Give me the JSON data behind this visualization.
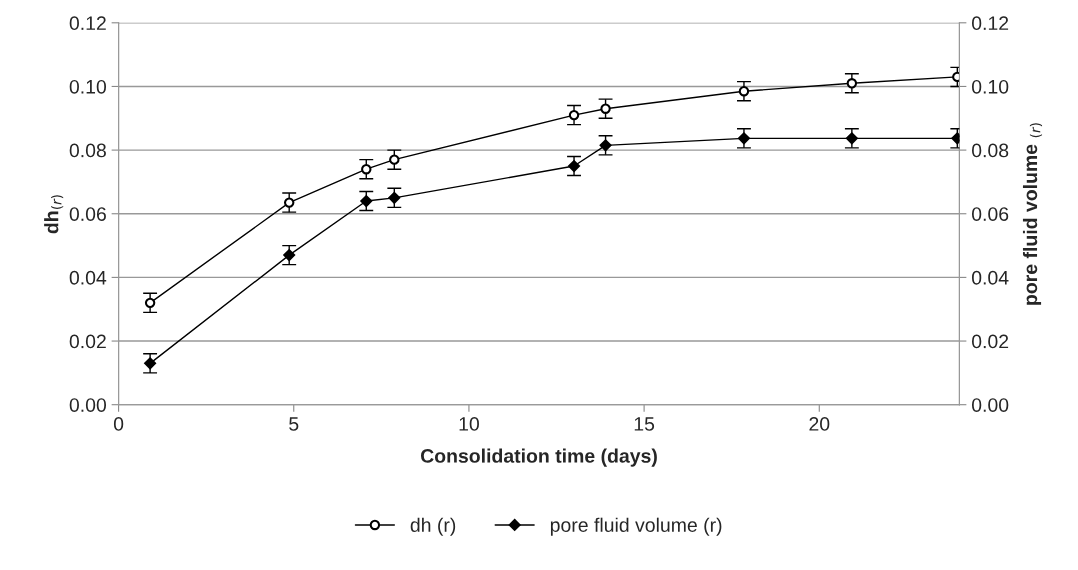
{
  "chart_data": {
    "type": "line",
    "xlabel": "Consolidation time (days)",
    "ylabel": "dh$_{(r)}$",
    "y2label": "pore fluid volume $_{(r)}$",
    "x": [
      0.9,
      4.87,
      7.07,
      7.87,
      13.0,
      13.9,
      17.85,
      20.93,
      23.94
    ],
    "series": [
      {
        "name": "dh (r)",
        "color": "#000000",
        "marker": "circle",
        "values": [
          0.032,
          0.0635,
          0.074,
          0.077,
          0.091,
          0.093,
          0.0985,
          0.101,
          0.103
        ],
        "errors": [
          0.003,
          0.003,
          0.003,
          0.003,
          0.003,
          0.003,
          0.003,
          0.003,
          0.003
        ]
      },
      {
        "name": "pore fluid volume (r)",
        "color": "#000000",
        "marker": "diamond",
        "axis": "y2",
        "values": [
          0.013,
          0.047,
          0.064,
          0.065,
          0.075,
          0.0815,
          0.0837,
          0.0837,
          0.0837
        ],
        "errors": [
          0.003,
          0.003,
          0.003,
          0.003,
          0.003,
          0.003,
          0.003,
          0.003,
          0.003
        ]
      }
    ],
    "xlim": [
      0,
      24
    ],
    "xticks": [
      0,
      5,
      10,
      15,
      20
    ],
    "ylim": [
      0,
      0.12
    ],
    "yticks": [
      {
        "value": 0,
        "label": "0.00"
      },
      {
        "value": 0.02,
        "label": "0.02"
      },
      {
        "value": 0.04,
        "label": "0.04"
      },
      {
        "value": 0.06,
        "label": "0.06"
      },
      {
        "value": 0.08,
        "label": "0.08"
      },
      {
        "value": 0.1,
        "label": "0.10"
      },
      {
        "value": 0.12,
        "label": "0.12"
      }
    ],
    "y2lim": [
      0,
      0.12
    ],
    "y2ticks": [
      {
        "value": 0,
        "label": "0.00"
      },
      {
        "value": 0.02,
        "label": "0.02"
      },
      {
        "value": 0.04,
        "label": "0.04"
      },
      {
        "value": 0.06,
        "label": "0.06"
      },
      {
        "value": 0.08,
        "label": "0.08"
      },
      {
        "value": 0.1,
        "label": "0.10"
      },
      {
        "value": 0.12,
        "label": "0.12"
      }
    ],
    "grid": "y",
    "legend": "bottom"
  }
}
